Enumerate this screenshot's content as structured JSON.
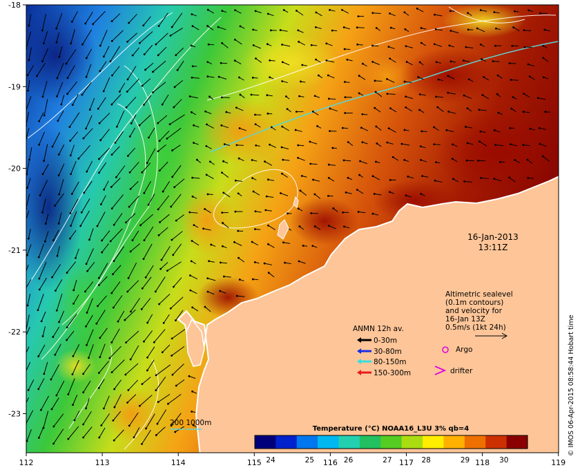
{
  "map": {
    "timestamp": {
      "date": "16-Jan-2013",
      "time": "13:11Z"
    },
    "lon_ticks": [
      "112",
      "113",
      "114",
      "115",
      "116",
      "117",
      "118",
      "119"
    ],
    "lat_ticks": [
      "-18",
      "-19",
      "-20",
      "-21",
      "-22",
      "-23"
    ],
    "altimetry_note": [
      "Altimetric sealevel",
      "(0.1m contours)",
      "and velocity for",
      "16-Jan 13Z",
      "0.5m/s (1kt 24h)"
    ],
    "mooring_legend": {
      "title": "ANMN 12h av.",
      "items": [
        {
          "label": "0-30m",
          "color": "#000000"
        },
        {
          "label": "30-80m",
          "color": "#1a2ee8"
        },
        {
          "label": "80-150m",
          "color": "#33e0e0"
        },
        {
          "label": "150-300m",
          "color": "#e81a1a"
        }
      ]
    },
    "argo_label": "Argo",
    "drifter_label": "drifter",
    "isobath_label": "200  1000m",
    "colorbar": {
      "title": "Temperature (°C) NOAA16_L3U 3% qb=4",
      "ticks": [
        "24",
        "25",
        "26",
        "27",
        "28",
        "29",
        "30"
      ],
      "colors": [
        "#00007a",
        "#0022cc",
        "#0077ee",
        "#00b8f0",
        "#22d0b0",
        "#22c060",
        "#55cc22",
        "#aadd11",
        "#ffee00",
        "#ffb000",
        "#ee7000",
        "#cc3000",
        "#8a0000"
      ]
    },
    "stamp": "© IMOS 06-Apr-2015 08:58:44 Hobart time",
    "land_color": "#fdc598"
  }
}
